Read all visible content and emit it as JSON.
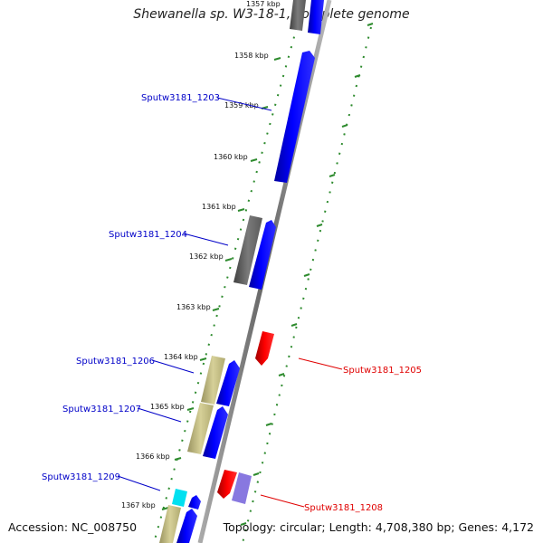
{
  "title": "Shewanella sp. W3-18-1, complete genome",
  "accession": "Accession: NC_008750",
  "topology": "Topology: circular; Length: 4,708,380 bp; Genes: 4,172",
  "colors": {
    "label_blue": "#0000c8",
    "label_red": "#e00000",
    "cds_forward": "#0000ff",
    "cds_reverse": "#ff0000",
    "gene_gray": "#707070",
    "gene_khaki": "#c8c080",
    "gene_cyan": "#00e0f0",
    "gene_lavender": "#8878e0",
    "tick_green": "#2e8b2e",
    "backbone": "#888888"
  },
  "ticks": [
    {
      "label": "1357 kbp",
      "kbp": 1357
    },
    {
      "label": "1358 kbp",
      "kbp": 1358
    },
    {
      "label": "1359 kbp",
      "kbp": 1359
    },
    {
      "label": "1360 kbp",
      "kbp": 1360
    },
    {
      "label": "1361 kbp",
      "kbp": 1361
    },
    {
      "label": "1362 kbp",
      "kbp": 1362
    },
    {
      "label": "1363 kbp",
      "kbp": 1363
    },
    {
      "label": "1364 kbp",
      "kbp": 1364
    },
    {
      "label": "1365 kbp",
      "kbp": 1365
    },
    {
      "label": "1366 kbp",
      "kbp": 1366
    },
    {
      "label": "1367 kbp",
      "kbp": 1367
    }
  ],
  "gene_labels": [
    {
      "label": "Sputw3181_1203",
      "strand": "forward"
    },
    {
      "label": "Sputw3181_1204",
      "strand": "forward"
    },
    {
      "label": "Sputw3181_1205",
      "strand": "reverse"
    },
    {
      "label": "Sputw3181_1206",
      "strand": "forward"
    },
    {
      "label": "Sputw3181_1207",
      "strand": "forward"
    },
    {
      "label": "Sputw3181_1208",
      "strand": "reverse"
    },
    {
      "label": "Sputw3181_1209",
      "strand": "forward"
    }
  ]
}
